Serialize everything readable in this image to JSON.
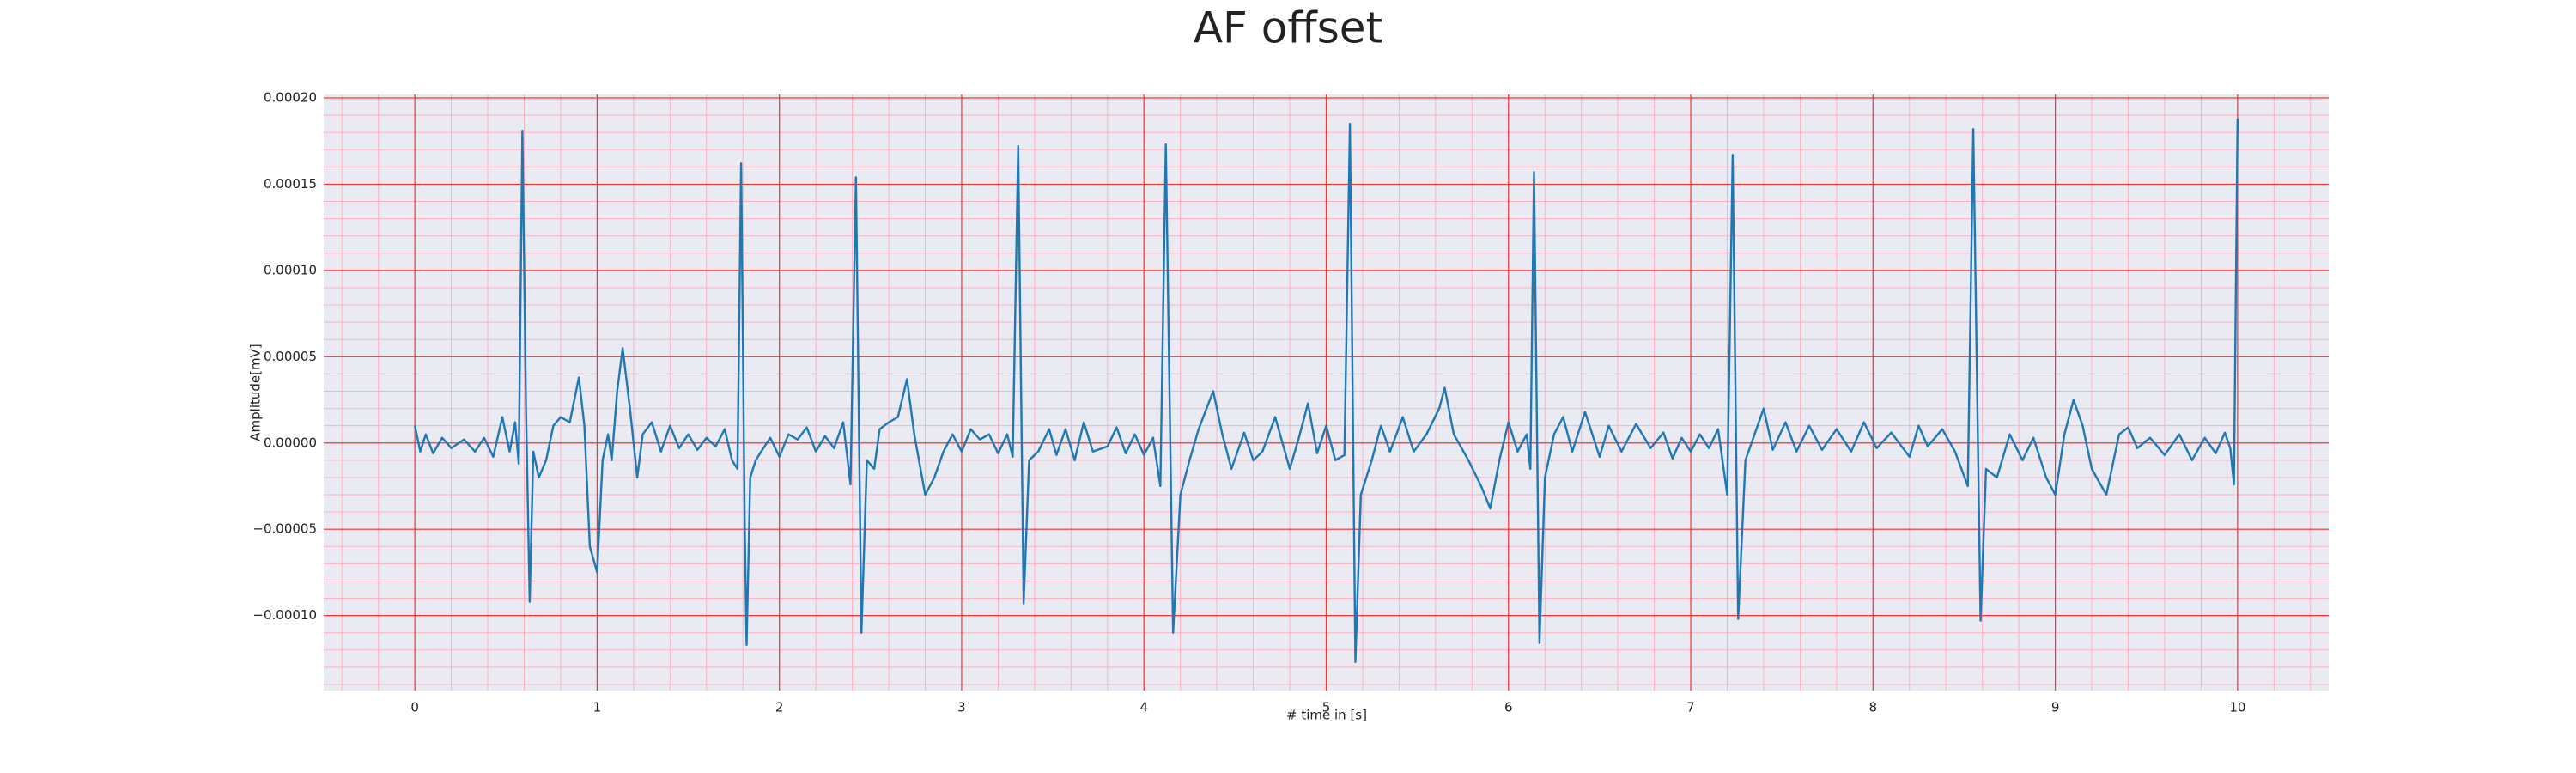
{
  "chart_data": {
    "type": "line",
    "title": "AF offset",
    "xlabel": "# time in [s]",
    "ylabel": "Amplitude[mV]",
    "x": [
      0,
      0.03,
      0.06,
      0.1,
      0.15,
      0.2,
      0.27,
      0.33,
      0.38,
      0.43,
      0.48,
      0.52,
      0.55,
      0.57,
      0.59,
      0.61,
      0.63,
      0.65,
      0.68,
      0.72,
      0.76,
      0.8,
      0.85,
      0.9,
      0.93,
      0.96,
      1.0,
      1.03,
      1.06,
      1.08,
      1.11,
      1.14,
      1.18,
      1.22,
      1.25,
      1.3,
      1.35,
      1.4,
      1.45,
      1.5,
      1.55,
      1.6,
      1.65,
      1.7,
      1.74,
      1.77,
      1.79,
      1.81,
      1.82,
      1.84,
      1.87,
      1.9,
      1.95,
      2.0,
      2.05,
      2.1,
      2.15,
      2.2,
      2.25,
      2.3,
      2.35,
      2.39,
      2.42,
      2.45,
      2.48,
      2.52,
      2.55,
      2.6,
      2.65,
      2.7,
      2.74,
      2.8,
      2.85,
      2.9,
      2.95,
      3.0,
      3.05,
      3.1,
      3.15,
      3.2,
      3.25,
      3.28,
      3.31,
      3.34,
      3.37,
      3.42,
      3.48,
      3.52,
      3.57,
      3.62,
      3.67,
      3.72,
      3.8,
      3.85,
      3.9,
      3.95,
      4.0,
      4.05,
      4.09,
      4.12,
      4.16,
      4.2,
      4.25,
      4.3,
      4.38,
      4.43,
      4.48,
      4.55,
      4.6,
      4.65,
      4.72,
      4.8,
      4.85,
      4.9,
      4.95,
      5.0,
      5.05,
      5.1,
      5.13,
      5.16,
      5.19,
      5.25,
      5.3,
      5.35,
      5.42,
      5.48,
      5.55,
      5.62,
      5.65,
      5.7,
      5.78,
      5.85,
      5.9,
      5.95,
      6.0,
      6.05,
      6.1,
      6.12,
      6.14,
      6.17,
      6.2,
      6.25,
      6.3,
      6.35,
      6.42,
      6.5,
      6.55,
      6.62,
      6.7,
      6.78,
      6.85,
      6.9,
      6.95,
      7.0,
      7.05,
      7.1,
      7.15,
      7.2,
      7.23,
      7.26,
      7.3,
      7.35,
      7.4,
      7.45,
      7.52,
      7.58,
      7.65,
      7.72,
      7.8,
      7.88,
      7.95,
      8.02,
      8.1,
      8.2,
      8.25,
      8.3,
      8.38,
      8.45,
      8.52,
      8.55,
      8.59,
      8.62,
      8.68,
      8.75,
      8.82,
      8.88,
      8.95,
      9.0,
      9.05,
      9.1,
      9.15,
      9.2,
      9.28,
      9.35,
      9.4,
      9.45,
      9.52,
      9.6,
      9.68,
      9.75,
      9.82,
      9.88,
      9.93,
      9.96,
      9.98,
      10.0
    ],
    "series": [
      {
        "color": "#1f77b4",
        "values": [
          1e-05,
          -5e-06,
          5e-06,
          -6e-06,
          3e-06,
          -3e-06,
          2e-06,
          -5e-06,
          3e-06,
          -8e-06,
          1.5e-05,
          -5e-06,
          1.2e-05,
          -1.2e-05,
          0.000181,
          2e-05,
          -9.2e-05,
          -5e-06,
          -2e-05,
          -1e-05,
          1e-05,
          1.5e-05,
          1.2e-05,
          3.8e-05,
          1e-05,
          -6e-05,
          -7.5e-05,
          -1e-05,
          5e-06,
          -1e-05,
          3e-05,
          5.5e-05,
          2e-05,
          -2e-05,
          5e-06,
          1.2e-05,
          -5e-06,
          1e-05,
          -3e-06,
          5e-06,
          -4e-06,
          3e-06,
          -2e-06,
          8e-06,
          -1e-05,
          -1.5e-05,
          0.000162,
          -5e-05,
          -0.000117,
          -2e-05,
          -1e-05,
          -5e-06,
          3e-06,
          -8e-06,
          5e-06,
          2e-06,
          9e-06,
          -5e-06,
          4e-06,
          -3e-06,
          1.2e-05,
          -2.4e-05,
          0.000154,
          -0.00011,
          -1e-05,
          -1.5e-05,
          8e-06,
          1.2e-05,
          1.5e-05,
          3.7e-05,
          5e-06,
          -3e-05,
          -2e-05,
          -5e-06,
          5e-06,
          -5e-06,
          8e-06,
          2e-06,
          5e-06,
          -6e-06,
          5e-06,
          -8e-06,
          0.000172,
          -9.3e-05,
          -1e-05,
          -5e-06,
          8e-06,
          -7e-06,
          8e-06,
          -1e-05,
          1.2e-05,
          -5e-06,
          -2e-06,
          9e-06,
          -6e-06,
          5e-06,
          -7e-06,
          3e-06,
          -2.5e-05,
          0.000173,
          -0.00011,
          -3e-05,
          -1e-05,
          8e-06,
          3e-05,
          5e-06,
          -1.5e-05,
          6e-06,
          -1e-05,
          -5e-06,
          1.5e-05,
          -1.5e-05,
          3e-06,
          2.3e-05,
          -6e-06,
          1e-05,
          -1e-05,
          -7e-06,
          0.000185,
          -0.000127,
          -3e-05,
          -1e-05,
          1e-05,
          -5e-06,
          1.5e-05,
          -5e-06,
          5e-06,
          2e-05,
          3.2e-05,
          5e-06,
          -1e-05,
          -2.5e-05,
          -3.8e-05,
          -1e-05,
          1.2e-05,
          -5e-06,
          5e-06,
          -1.5e-05,
          0.000157,
          -0.000116,
          -2e-05,
          5e-06,
          1.5e-05,
          -5e-06,
          1.8e-05,
          -8e-06,
          1e-05,
          -5e-06,
          1.1e-05,
          -3e-06,
          6e-06,
          -9e-06,
          3e-06,
          -5e-06,
          5e-06,
          -3e-06,
          8e-06,
          -3e-05,
          0.000167,
          -0.000102,
          -1e-05,
          5e-06,
          2e-05,
          -4e-06,
          1.2e-05,
          -5e-06,
          1e-05,
          -4e-06,
          8e-06,
          -5e-06,
          1.2e-05,
          -3e-06,
          6e-06,
          -8e-06,
          1e-05,
          -2e-06,
          8e-06,
          -5e-06,
          -2.5e-05,
          0.000182,
          -0.000103,
          -1.5e-05,
          -2e-05,
          5e-06,
          -1e-05,
          3e-06,
          -2e-05,
          -3e-05,
          5e-06,
          2.5e-05,
          1e-05,
          -1.5e-05,
          -3e-05,
          5e-06,
          9e-06,
          -3e-06,
          3e-06,
          -7e-06,
          5e-06,
          -1e-05,
          3e-06,
          -6e-06,
          6e-06,
          -3e-06,
          -2.4e-05,
          0.000188
        ]
      }
    ],
    "xlim": [
      -0.5,
      10.5
    ],
    "ylim": [
      -0.0001435,
      0.000202
    ],
    "xticks": [
      0,
      1,
      2,
      3,
      4,
      5,
      6,
      7,
      8,
      9,
      10
    ],
    "yticks": [
      {
        "value": -0.0001,
        "label": "−0.00010"
      },
      {
        "value": -5e-05,
        "label": "−0.00005"
      },
      {
        "value": 0,
        "label": "0.00000"
      },
      {
        "value": 5e-05,
        "label": "0.00005"
      },
      {
        "value": 0.0001,
        "label": "0.00010"
      },
      {
        "value": 0.00015,
        "label": "0.00015"
      },
      {
        "value": 0.0002,
        "label": "0.00020"
      }
    ],
    "grid": true,
    "minor_grid": true,
    "grid_color": "#ff3030",
    "minor_grid_color": "#ffb0c0",
    "background": "#eaeaf2"
  }
}
